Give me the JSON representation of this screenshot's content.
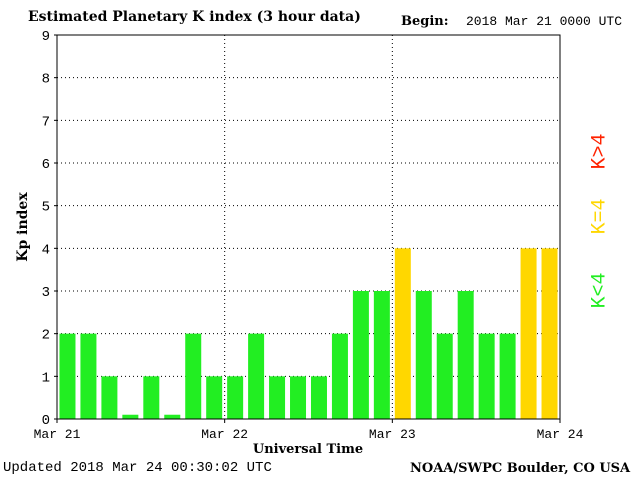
{
  "header": {
    "title": "Estimated Planetary K index (3 hour data)",
    "begin_label": "Begin:",
    "begin_value": "2018 Mar 21 0000 UTC"
  },
  "footer": {
    "updated": "Updated 2018 Mar 24 00:30:02 UTC",
    "credit": "NOAA/SWPC Boulder, CO USA"
  },
  "legend": {
    "low": "K<4",
    "equal": "K=4",
    "high": "K>4",
    "colors": {
      "low": "#22ee22",
      "equal": "#ffd700",
      "high": "#ff2200"
    }
  },
  "chart_data": {
    "type": "bar",
    "xlabel": "Universal Time",
    "ylabel": "Kp index",
    "ylim": [
      0,
      9
    ],
    "yticks": [
      "0",
      "1",
      "2",
      "3",
      "4",
      "5",
      "6",
      "7",
      "8",
      "9"
    ],
    "xticks": [
      "Mar 21",
      "Mar 22",
      "Mar 23",
      "Mar 24"
    ],
    "grid": true,
    "values": [
      2,
      2,
      1,
      0.1,
      1,
      0.1,
      2,
      1,
      1,
      2,
      1,
      1,
      1,
      2,
      3,
      3,
      4,
      3,
      2,
      3,
      2,
      2,
      4,
      4
    ]
  }
}
